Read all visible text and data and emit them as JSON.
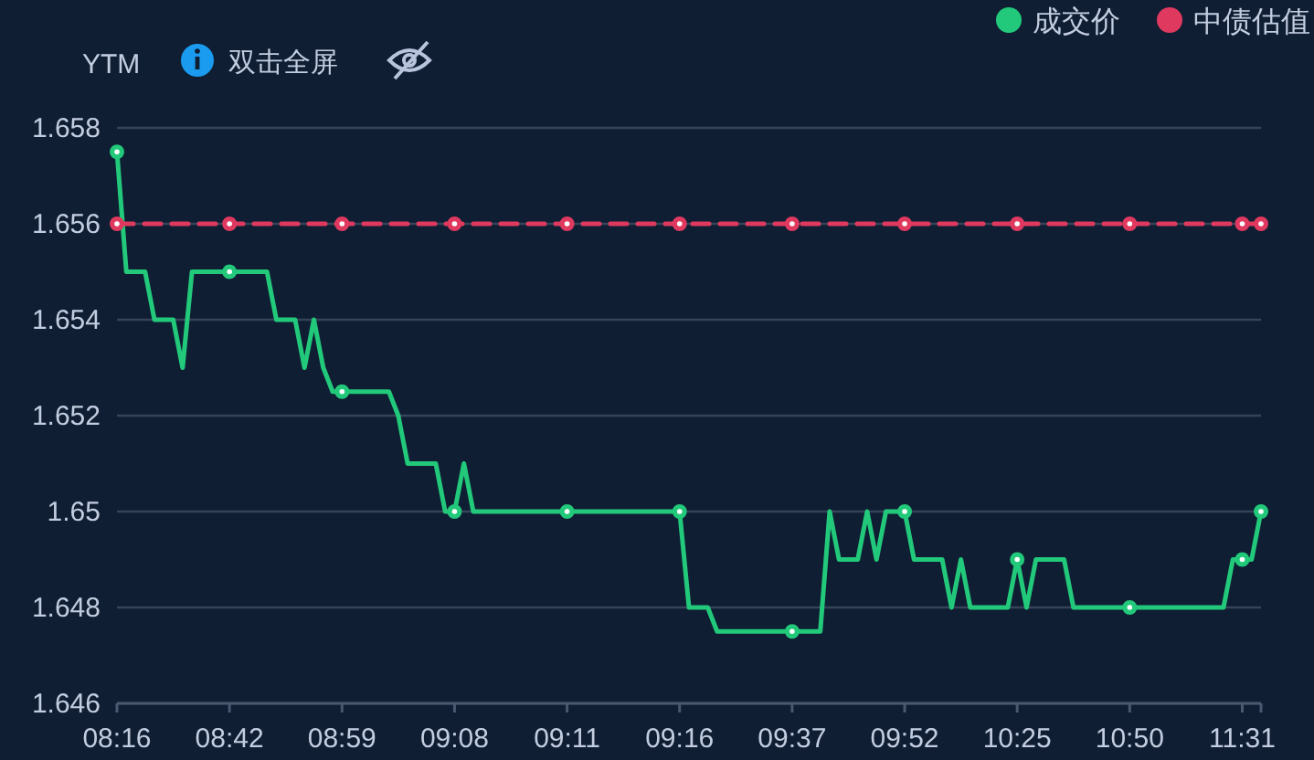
{
  "chart_data": {
    "type": "line",
    "ylabel": "YTM",
    "annotations": [
      "双击全屏"
    ],
    "categories": [
      "08:16",
      null,
      null,
      null,
      null,
      null,
      null,
      null,
      null,
      null,
      null,
      null,
      "08:42",
      null,
      null,
      null,
      null,
      null,
      null,
      null,
      null,
      null,
      null,
      null,
      "08:59",
      null,
      null,
      null,
      null,
      null,
      null,
      null,
      null,
      null,
      null,
      null,
      "09:08",
      null,
      null,
      null,
      null,
      null,
      null,
      null,
      null,
      null,
      null,
      null,
      "09:11",
      null,
      null,
      null,
      null,
      null,
      null,
      null,
      null,
      null,
      null,
      null,
      "09:16",
      null,
      null,
      null,
      null,
      null,
      null,
      null,
      null,
      null,
      null,
      null,
      "09:37",
      null,
      null,
      null,
      null,
      null,
      null,
      null,
      null,
      null,
      null,
      null,
      "09:52",
      null,
      null,
      null,
      null,
      null,
      null,
      null,
      null,
      null,
      null,
      null,
      "10:25",
      null,
      null,
      null,
      null,
      null,
      null,
      null,
      null,
      null,
      null,
      null,
      "10:50",
      null,
      null,
      null,
      null,
      null,
      null,
      null,
      null,
      null,
      null,
      null,
      "11:31",
      null,
      null
    ],
    "series": [
      {
        "name": "成交价",
        "color": "#22c97a",
        "line_style": "solid",
        "values": [
          1.6575,
          1.655,
          1.655,
          1.655,
          1.654,
          1.654,
          1.654,
          1.653,
          1.655,
          1.655,
          1.655,
          1.655,
          1.655,
          1.655,
          1.655,
          1.655,
          1.655,
          1.654,
          1.654,
          1.654,
          1.653,
          1.654,
          1.653,
          1.6525,
          1.6525,
          1.6525,
          1.6525,
          1.6525,
          1.6525,
          1.6525,
          1.652,
          1.651,
          1.651,
          1.651,
          1.651,
          1.65,
          1.65,
          1.651,
          1.65,
          1.65,
          1.65,
          1.65,
          1.65,
          1.65,
          1.65,
          1.65,
          1.65,
          1.65,
          1.65,
          1.65,
          1.65,
          1.65,
          1.65,
          1.65,
          1.65,
          1.65,
          1.65,
          1.65,
          1.65,
          1.65,
          1.65,
          1.648,
          1.648,
          1.648,
          1.6475,
          1.6475,
          1.6475,
          1.6475,
          1.6475,
          1.6475,
          1.6475,
          1.6475,
          1.6475,
          1.6475,
          1.6475,
          1.6475,
          1.65,
          1.649,
          1.649,
          1.649,
          1.65,
          1.649,
          1.65,
          1.65,
          1.65,
          1.649,
          1.649,
          1.649,
          1.649,
          1.648,
          1.649,
          1.648,
          1.648,
          1.648,
          1.648,
          1.648,
          1.649,
          1.648,
          1.649,
          1.649,
          1.649,
          1.649,
          1.648,
          1.648,
          1.648,
          1.648,
          1.648,
          1.648,
          1.648,
          1.648,
          1.648,
          1.648,
          1.648,
          1.648,
          1.648,
          1.648,
          1.648,
          1.648,
          1.648,
          1.649,
          1.649,
          1.649,
          1.65
        ]
      },
      {
        "name": "中债估值",
        "color": "#e0395f",
        "line_style": "dashed",
        "values": [
          1.656,
          1.656,
          1.656,
          1.656,
          1.656,
          1.656,
          1.656,
          1.656,
          1.656,
          1.656,
          1.656,
          1.656,
          1.656,
          1.656,
          1.656,
          1.656,
          1.656,
          1.656,
          1.656,
          1.656,
          1.656,
          1.656,
          1.656,
          1.656,
          1.656,
          1.656,
          1.656,
          1.656,
          1.656,
          1.656,
          1.656,
          1.656,
          1.656,
          1.656,
          1.656,
          1.656,
          1.656,
          1.656,
          1.656,
          1.656,
          1.656,
          1.656,
          1.656,
          1.656,
          1.656,
          1.656,
          1.656,
          1.656,
          1.656,
          1.656,
          1.656,
          1.656,
          1.656,
          1.656,
          1.656,
          1.656,
          1.656,
          1.656,
          1.656,
          1.656,
          1.656,
          1.656,
          1.656,
          1.656,
          1.656,
          1.656,
          1.656,
          1.656,
          1.656,
          1.656,
          1.656,
          1.656,
          1.656,
          1.656,
          1.656,
          1.656,
          1.656,
          1.656,
          1.656,
          1.656,
          1.656,
          1.656,
          1.656,
          1.656,
          1.656,
          1.656,
          1.656,
          1.656,
          1.656,
          1.656,
          1.656,
          1.656,
          1.656,
          1.656,
          1.656,
          1.656,
          1.656,
          1.656,
          1.656,
          1.656,
          1.656,
          1.656,
          1.656,
          1.656,
          1.656,
          1.656,
          1.656,
          1.656,
          1.656,
          1.656,
          1.656,
          1.656,
          1.656,
          1.656,
          1.656,
          1.656,
          1.656,
          1.656,
          1.656,
          1.656,
          1.656,
          1.656,
          1.656
        ]
      }
    ],
    "ylim": [
      1.646,
      1.658
    ],
    "yticks": [
      1.646,
      1.648,
      1.65,
      1.652,
      1.654,
      1.656,
      1.658
    ],
    "grid": "y",
    "legend": "top right"
  }
}
